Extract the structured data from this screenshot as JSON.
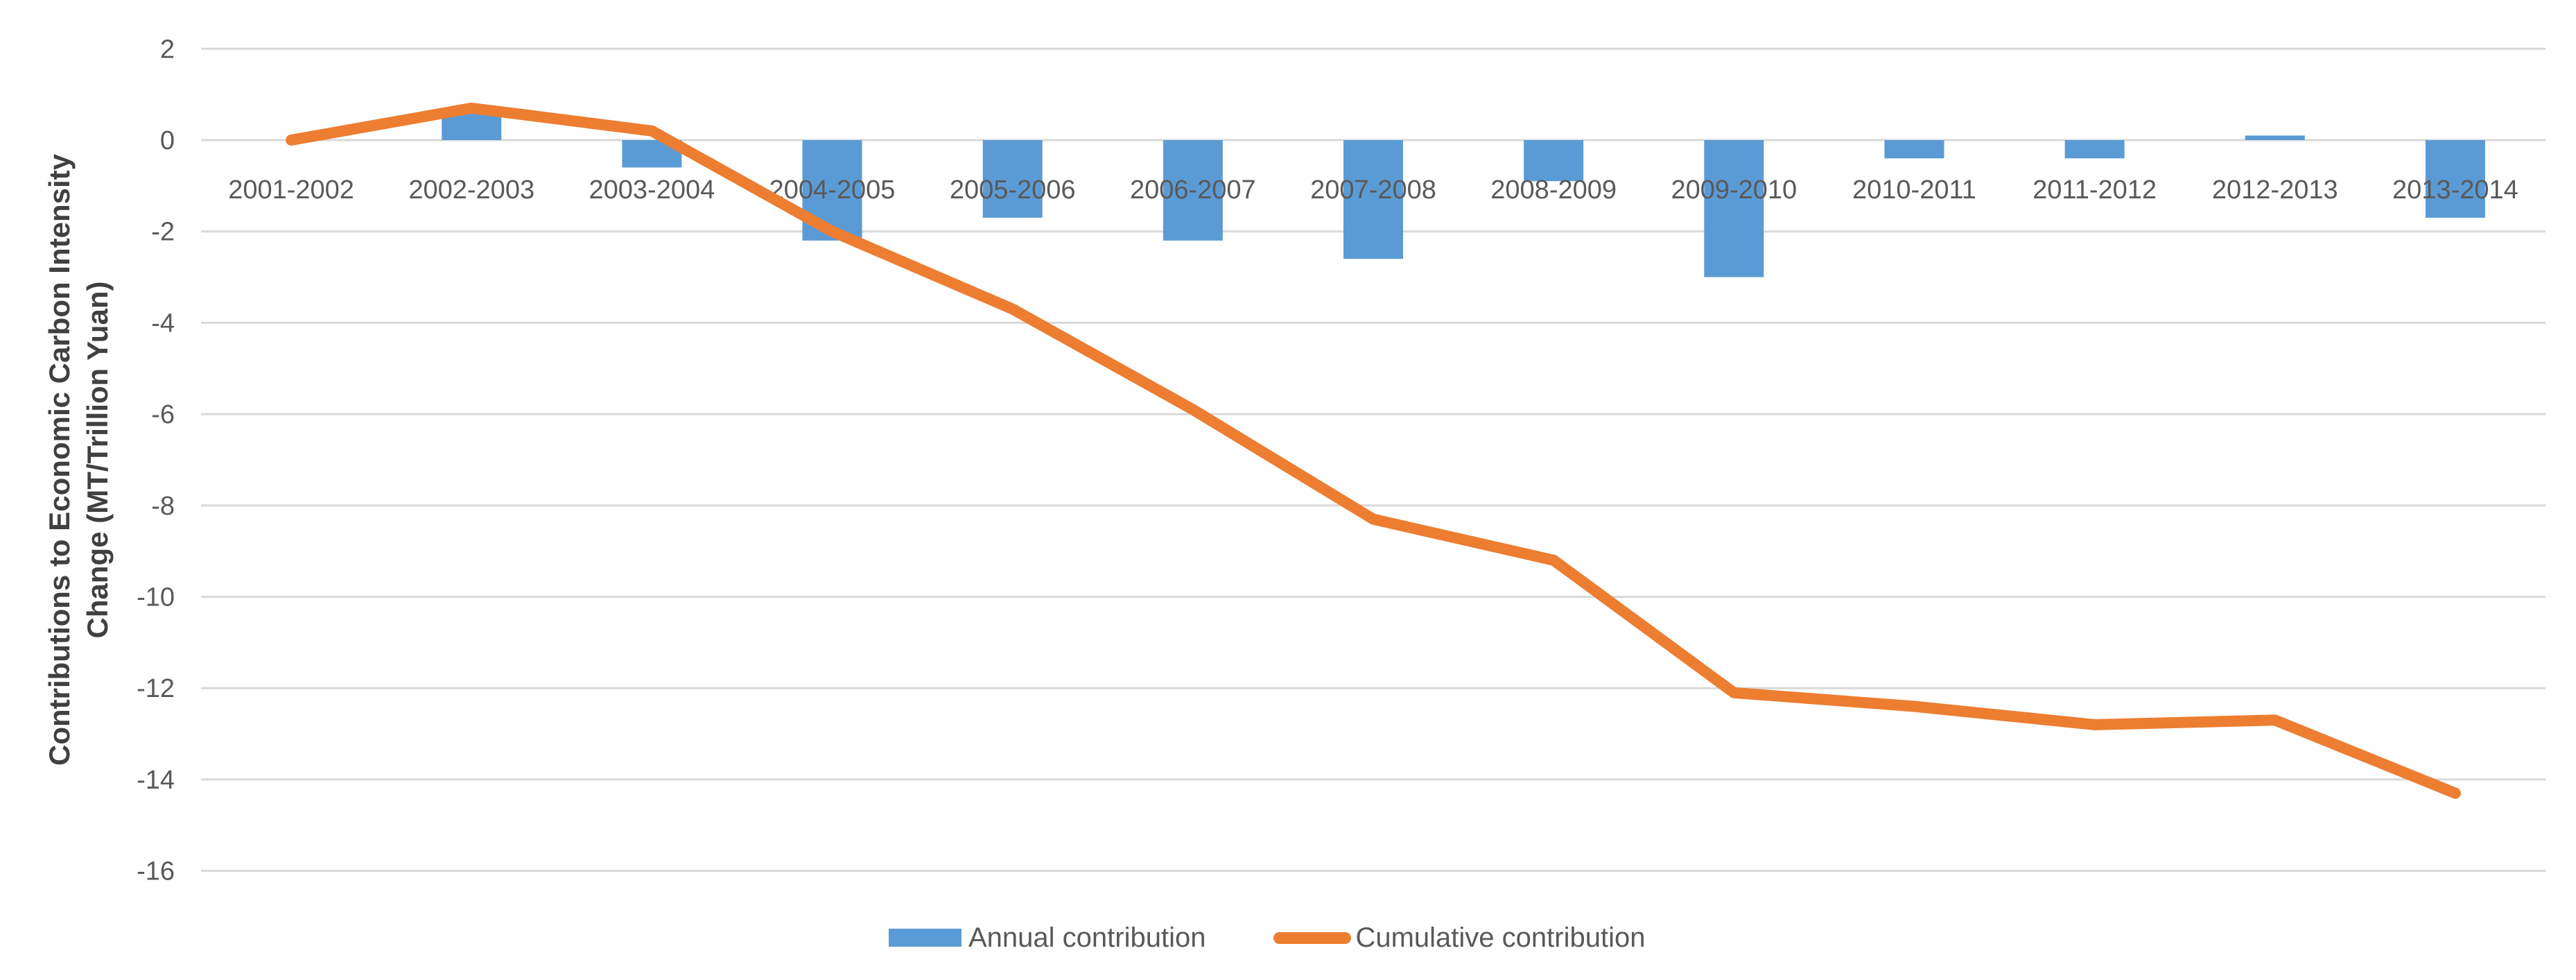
{
  "y_axis": {
    "title_line1": "Contributions to Economic Carbon Intensity",
    "title_line2": "Change (MT/Trillion Yuan)",
    "ticks": [
      2,
      0,
      -2,
      -4,
      -6,
      -8,
      -10,
      -12,
      -14,
      -16
    ]
  },
  "legend": {
    "items": [
      {
        "label": "Annual contribution",
        "type": "bar",
        "color": "#5B9BD5"
      },
      {
        "label": "Cumulative contribution",
        "type": "line",
        "color": "#ED7D31"
      }
    ]
  },
  "colors": {
    "bar": "#5B9BD5",
    "line": "#ED7D31",
    "gridline": "#D9D9D9",
    "tick_text": "#595959",
    "axis_title_text": "#404040",
    "background": "#FFFFFF"
  },
  "chart_data": {
    "type": "bar",
    "subtype": "bar-and-line-combo",
    "title": "",
    "xlabel": "",
    "ylabel": "Contributions to Economic Carbon Intensity Change (MT/Trillion Yuan)",
    "categories": [
      "2001-2002",
      "2002-2003",
      "2003-2004",
      "2004-2005",
      "2005-2006",
      "2006-2007",
      "2007-2008",
      "2008-2009",
      "2009-2010",
      "2010-2011",
      "2011-2012",
      "2012-2013",
      "2013-2014"
    ],
    "series": [
      {
        "name": "Annual contribution",
        "type": "bar",
        "color": "#5B9BD5",
        "values": [
          0,
          0.6,
          -0.6,
          -2.2,
          -1.7,
          -2.2,
          -2.6,
          -0.9,
          -3.0,
          -0.4,
          -0.4,
          0.1,
          -1.7
        ]
      },
      {
        "name": "Cumulative contribution",
        "type": "line",
        "color": "#ED7D31",
        "values": [
          0,
          0.7,
          0.2,
          -2.0,
          -3.7,
          -5.9,
          -8.3,
          -9.2,
          -12.1,
          -12.4,
          -12.8,
          -12.7,
          -14.3
        ]
      }
    ],
    "ylim": [
      -16,
      2
    ],
    "ytick_step": 2,
    "grid": true,
    "legend_position": "bottom"
  }
}
